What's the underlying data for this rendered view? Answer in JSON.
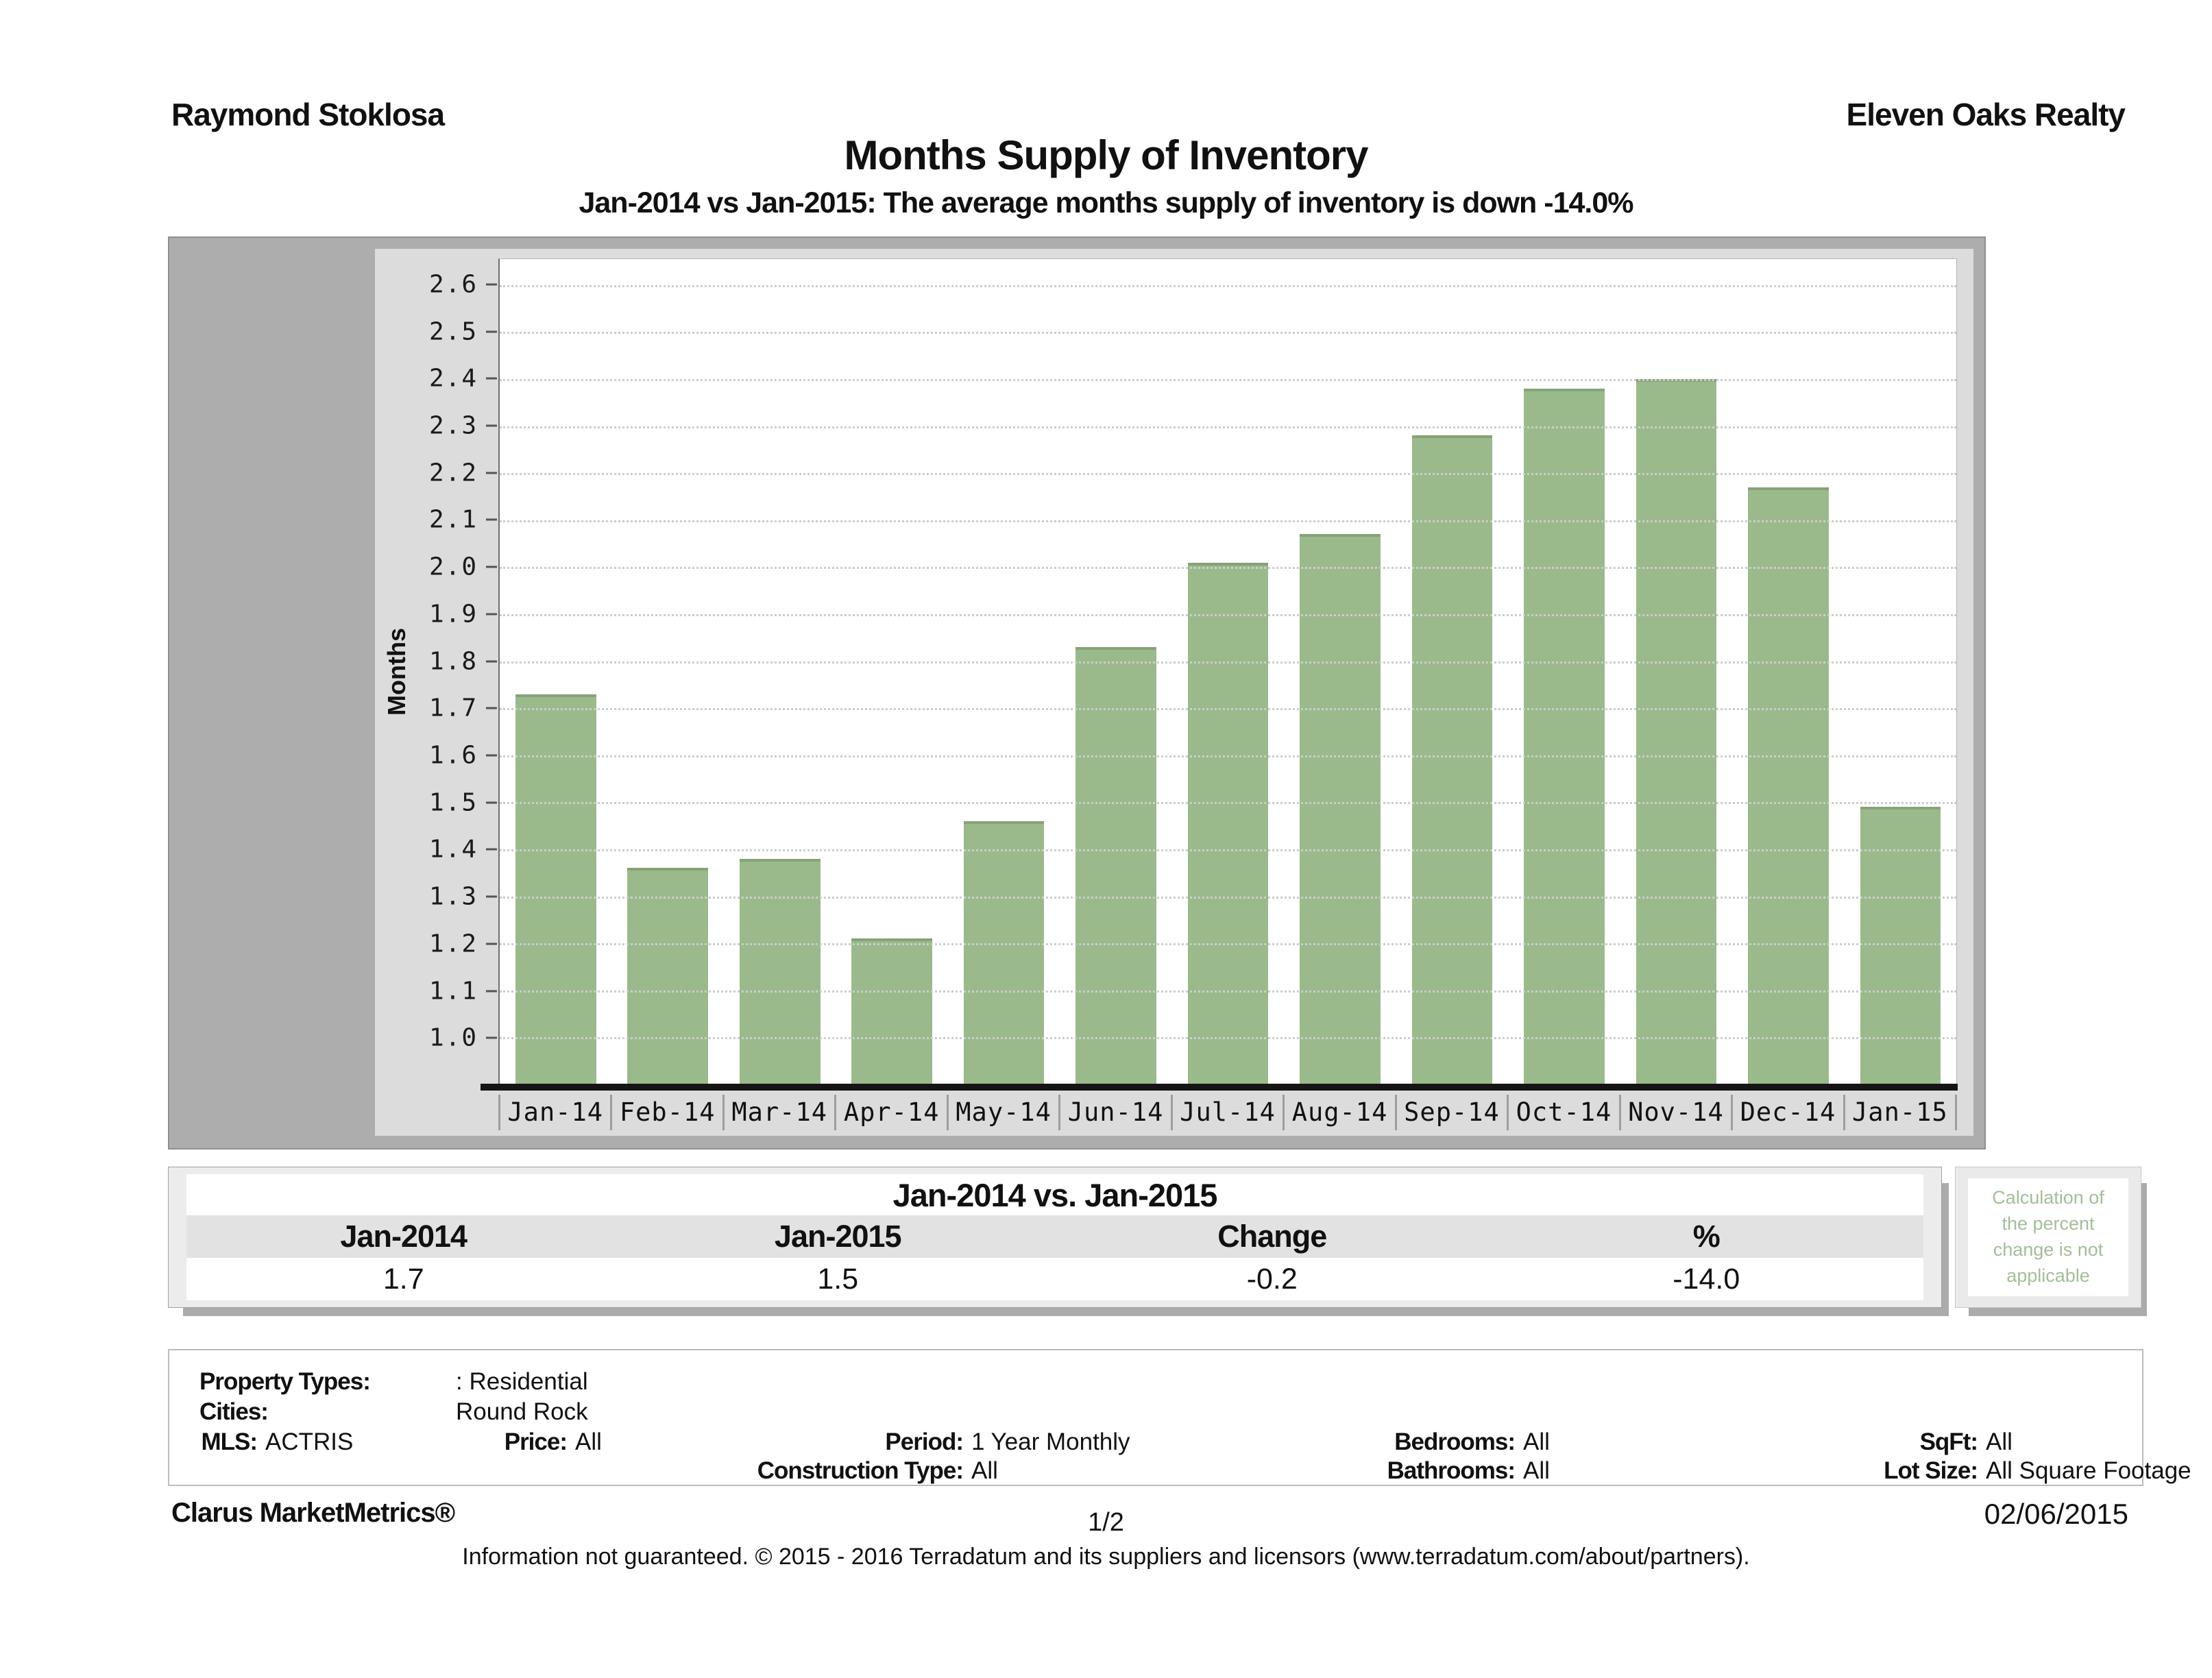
{
  "header": {
    "agent": "Raymond Stoklosa",
    "brokerage": "Eleven Oaks Realty"
  },
  "title": "Months Supply of Inventory",
  "subtitle": "Jan-2014 vs Jan-2015: The average months supply of inventory is down -14.0%",
  "chart_data": {
    "type": "bar",
    "categories": [
      "Jan-14",
      "Feb-14",
      "Mar-14",
      "Apr-14",
      "May-14",
      "Jun-14",
      "Jul-14",
      "Aug-14",
      "Sep-14",
      "Oct-14",
      "Nov-14",
      "Dec-14",
      "Jan-15"
    ],
    "values": [
      1.73,
      1.36,
      1.38,
      1.21,
      1.46,
      1.83,
      2.01,
      2.07,
      2.28,
      2.38,
      2.4,
      2.17,
      1.49
    ],
    "title": "Months Supply of Inventory",
    "xlabel": "",
    "ylabel": "Months",
    "yticks": [
      "2.6",
      "2.5",
      "2.4",
      "2.3",
      "2.2",
      "2.1",
      "2.0",
      "1.9",
      "1.8",
      "1.7",
      "1.6",
      "1.5",
      "1.4",
      "1.3",
      "1.2",
      "1.1",
      "1.0"
    ],
    "ylim": [
      1.0,
      2.6
    ],
    "render_range": [
      0.9,
      2.655
    ],
    "grid": true,
    "legend": "none",
    "bar_color": "#9aba8b",
    "bar_edge_color": "#86a378"
  },
  "comparison_table": {
    "title": "Jan-2014 vs. Jan-2015",
    "columns": [
      "Jan-2014",
      "Jan-2015",
      "Change",
      "%"
    ],
    "values": [
      "1.7",
      "1.5",
      "-0.2",
      "-14.0"
    ],
    "note": "Calculation of the percent change is not applicable",
    "note_color": "#a2bf97"
  },
  "filters": {
    "property_types_label": "Property Types:",
    "property_types_value": ": Residential",
    "cities_label": "Cities:",
    "cities_value": "Round Rock",
    "mls_label": "MLS:",
    "mls_value": "ACTRIS",
    "price_label": "Price:",
    "price_value": "All",
    "period_label": "Period:",
    "period_value": "1 Year Monthly",
    "construction_label": "Construction Type:",
    "construction_value": "All",
    "bedrooms_label": "Bedrooms:",
    "bedrooms_value": "All",
    "bathrooms_label": "Bathrooms:",
    "bathrooms_value": "All",
    "sqft_label": "SqFt:",
    "sqft_value": "All",
    "lot_label": "Lot Size:",
    "lot_value": "All Square Footage"
  },
  "footer": {
    "product": "Clarus MarketMetrics®",
    "page": "1/2",
    "date": "02/06/2015",
    "disclaimer": "Information not guaranteed. © 2015 - 2016 Terradatum and its suppliers and licensors (www.terradatum.com/about/partners)."
  }
}
